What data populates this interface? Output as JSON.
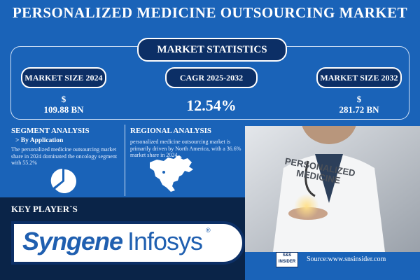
{
  "title": "PERSONALIZED MEDICINE OUTSOURCING MARKET",
  "market_statistics": {
    "heading": "MARKET STATISTICS",
    "size_2024": {
      "label": "MARKET SIZE 2024",
      "currency": "$",
      "value": "109.88 BN"
    },
    "cagr": {
      "label": "CAGR 2025-2032",
      "value": "12.54%"
    },
    "size_2032": {
      "label": "MARKET SIZE 2032",
      "currency": "$",
      "value": "281.72 BN"
    }
  },
  "segment": {
    "heading": "SEGMENT ANALYSIS",
    "sub": "> By Application",
    "text": "The personalized medicine outsourcing market share in 2024 dominated the oncology segment with 55.2%"
  },
  "regional": {
    "heading": "REGIONAL ANALYSIS",
    "text": "personalized medicine outsourcing market is primarily driven by North America, with a 36.6% market share in 2024."
  },
  "photo": {
    "line1": "PERSONALIZED",
    "line2": "MEDICINE"
  },
  "players": {
    "heading": "KEY PLAYER`S",
    "logos": [
      "Syngene",
      "Infosys"
    ],
    "registered": "®"
  },
  "source": {
    "logo_line1": "S&S",
    "logo_line2": "INSIDER",
    "text": "Source:www.snsinsider.com"
  },
  "colors": {
    "background": "#1a63b8",
    "navy": "#0c2f66",
    "band": "#0a2448",
    "logo_blue": "#1f5fb0"
  }
}
